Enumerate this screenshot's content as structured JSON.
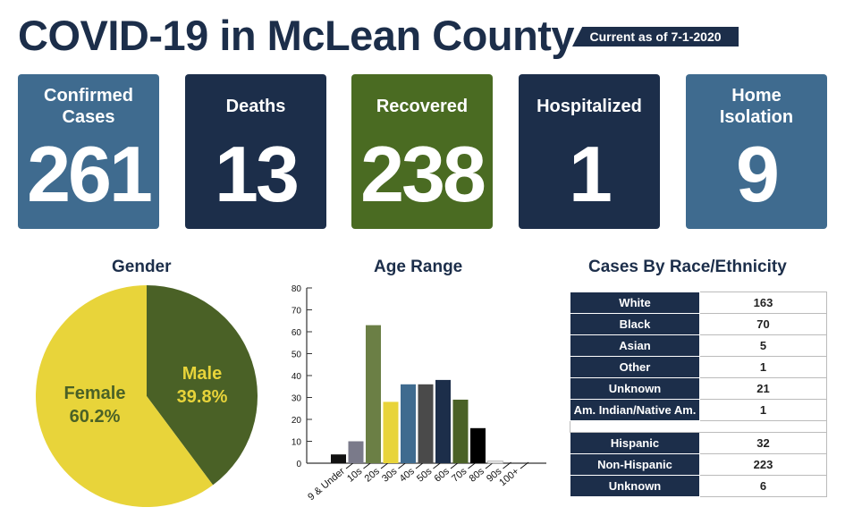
{
  "header": {
    "title": "COVID-19 in McLean County",
    "as_of": "Current as of 7-1-2020"
  },
  "cards": [
    {
      "label": "Confirmed Cases",
      "value": "261",
      "color": "#3f6b8f"
    },
    {
      "label": "Deaths",
      "value": "13",
      "color": "#1c2e4a"
    },
    {
      "label": "Recovered",
      "value": "238",
      "color": "#4a6b22"
    },
    {
      "label": "Hospitalized",
      "value": "1",
      "color": "#1c2e4a"
    },
    {
      "label": "Home Isolation",
      "value": "9",
      "color": "#3f6b8f"
    }
  ],
  "chart_data": [
    {
      "type": "pie",
      "title": "Gender",
      "slices": [
        {
          "label": "Male",
          "value": 39.8,
          "text": "39.8%",
          "color": "#4a6126"
        },
        {
          "label": "Female",
          "value": 60.2,
          "text": "60.2%",
          "color": "#e8d43a"
        }
      ]
    },
    {
      "type": "bar",
      "title": "Age Range",
      "categories": [
        "9 & Under",
        "10s",
        "20s",
        "30s",
        "40s",
        "50s",
        "60s",
        "70s",
        "80s",
        "90s",
        "100+"
      ],
      "values": [
        4,
        10,
        63,
        28,
        36,
        36,
        38,
        29,
        16,
        1,
        0
      ],
      "colors": [
        "#111111",
        "#7a7a8a",
        "#6b7f45",
        "#e8d43a",
        "#3f6b8f",
        "#4a4a4a",
        "#1c2e4a",
        "#4a6126",
        "#000000",
        "#e8e8e8",
        "#ffffff"
      ],
      "ylim": [
        0,
        80
      ],
      "yticks": [
        0,
        10,
        20,
        30,
        40,
        50,
        60,
        70,
        80
      ]
    },
    {
      "type": "table",
      "title": "Cases By Race/Ethnicity",
      "rows": [
        [
          "White",
          "163"
        ],
        [
          "Black",
          "70"
        ],
        [
          "Asian",
          "5"
        ],
        [
          "Other",
          "1"
        ],
        [
          "Unknown",
          "21"
        ],
        [
          "Am. Indian/Native Am.",
          "1"
        ]
      ],
      "rows2": [
        [
          "Hispanic",
          "32"
        ],
        [
          "Non-Hispanic",
          "223"
        ],
        [
          "Unknown",
          "6"
        ]
      ]
    }
  ]
}
